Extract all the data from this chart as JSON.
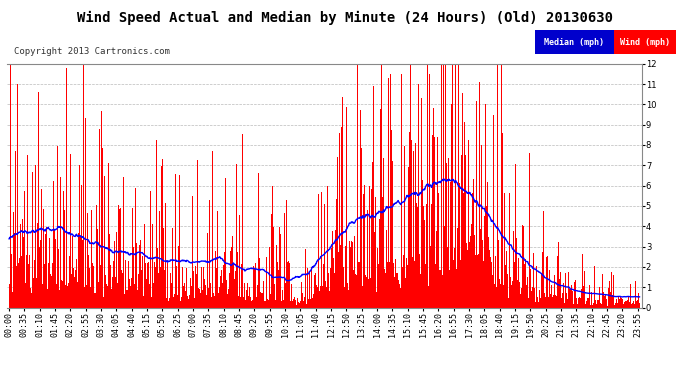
{
  "title": "Wind Speed Actual and Median by Minute (24 Hours) (Old) 20130630",
  "copyright": "Copyright 2013 Cartronics.com",
  "legend_median": "Median (mph)",
  "legend_wind": "Wind (mph)",
  "bar_color": "#ff0000",
  "line_color": "#0000ff",
  "ylim": [
    0.0,
    12.0
  ],
  "ytick_values": [
    0.0,
    1.0,
    2.0,
    3.0,
    4.0,
    5.0,
    6.0,
    7.0,
    8.0,
    9.0,
    10.0,
    11.0,
    12.0
  ],
  "background_color": "#ffffff",
  "grid_color": "#bbbbbb",
  "title_fontsize": 10,
  "copyright_fontsize": 6.5,
  "tick_fontsize": 6,
  "legend_median_bg": "#0000cc",
  "legend_wind_bg": "#ff0000"
}
